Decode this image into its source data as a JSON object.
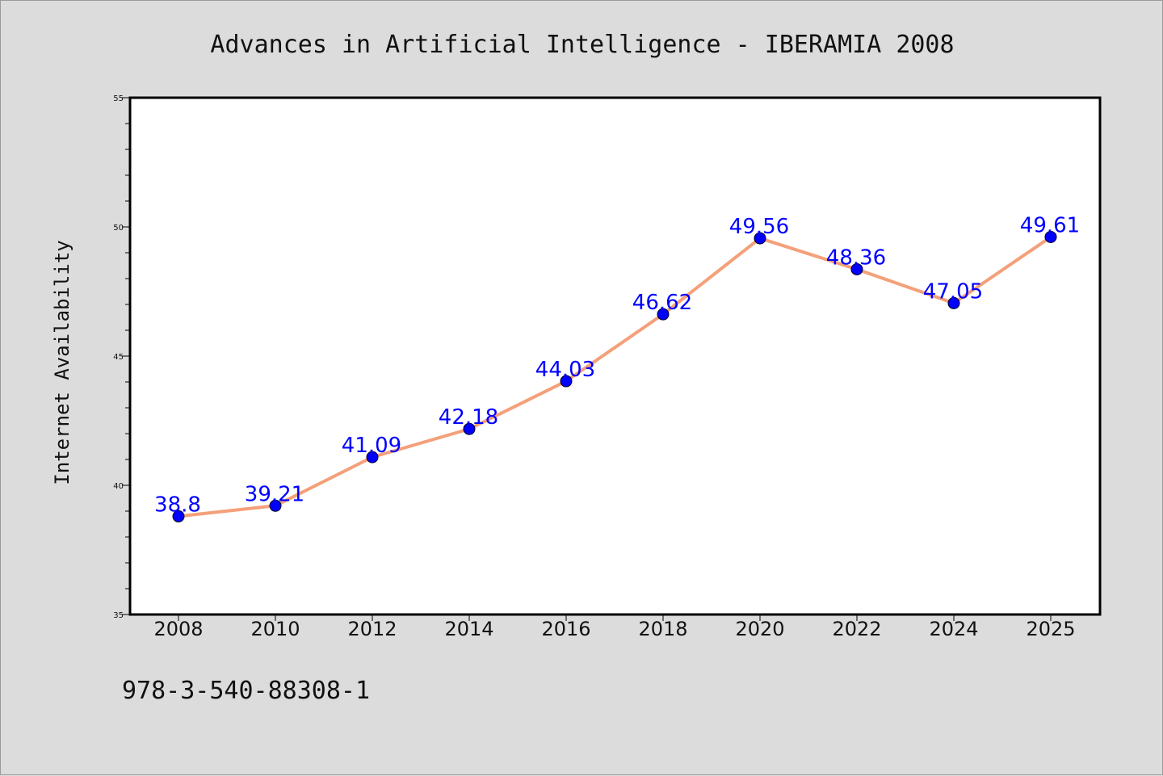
{
  "chart_data": {
    "type": "line",
    "title": "Advances in Artificial Intelligence - IBERAMIA 2008",
    "xlabel": "",
    "ylabel": "Internet Availability",
    "categories": [
      "2008",
      "2010",
      "2012",
      "2014",
      "2016",
      "2018",
      "2020",
      "2022",
      "2024",
      "2025"
    ],
    "series": [
      {
        "values": [
          38.8,
          39.21,
          41.09,
          42.18,
          44.03,
          46.62,
          49.56,
          48.36,
          47.05,
          49.61
        ],
        "labels": [
          "38.8",
          "39.21",
          "41.09",
          "42.18",
          "44.03",
          "46.62",
          "49.56",
          "48.36",
          "47.05",
          "49.61"
        ],
        "line_color": "#f4a07a",
        "marker_color": "#0000ff"
      }
    ],
    "ylim": [
      35,
      55
    ],
    "yticks": [
      "35",
      "40",
      "45",
      "50",
      "55"
    ],
    "grid": false,
    "legend": "none"
  },
  "footer": {
    "text": "978-3-540-88308-1"
  }
}
